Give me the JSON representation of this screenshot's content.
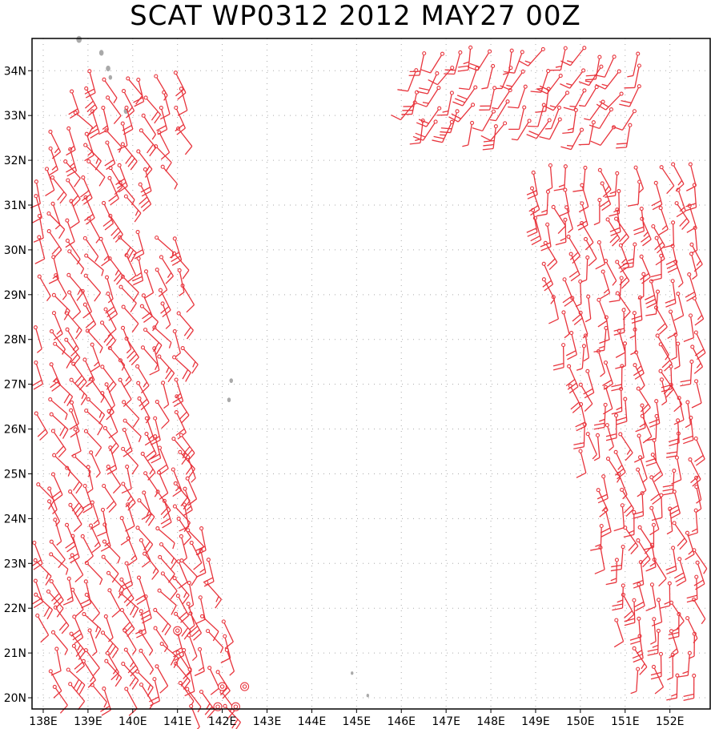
{
  "title": "SCAT WP0312 2012 MAY27 00Z",
  "colors": {
    "barb": "#e8353d",
    "land": "#a9a9a9",
    "grid": "#aaaaaa",
    "frame": "#000000"
  },
  "x_axis": {
    "ticks": [
      138,
      139,
      140,
      141,
      142,
      143,
      144,
      145,
      146,
      147,
      148,
      149,
      150,
      151,
      152
    ],
    "labels": [
      "138E",
      "139E",
      "140E",
      "141E",
      "142E",
      "143E",
      "144E",
      "145E",
      "146E",
      "147E",
      "148E",
      "149E",
      "150E",
      "151E",
      "152E"
    ],
    "range": [
      137.75,
      152.9
    ]
  },
  "y_axis": {
    "ticks": [
      20,
      21,
      22,
      23,
      24,
      25,
      26,
      27,
      28,
      29,
      30,
      31,
      32,
      33,
      34
    ],
    "labels": [
      "20N",
      "21N",
      "22N",
      "23N",
      "24N",
      "25N",
      "26N",
      "27N",
      "28N",
      "29N",
      "30N",
      "31N",
      "32N",
      "33N",
      "34N"
    ],
    "range": [
      19.75,
      34.72
    ]
  },
  "grid": true,
  "swaths": [
    {
      "lon_min": 137.8,
      "lon_max": 141.3,
      "lat_min": 20.3,
      "lat_max": 33.9,
      "dir": 150
    },
    {
      "lon_min": 140.8,
      "lon_max": 142.6,
      "lat_min": 19.8,
      "lat_max": 27.0,
      "dir": 150
    },
    {
      "lon_min": 148.5,
      "lon_max": 152.9,
      "lat_min": 20.6,
      "lat_max": 31.9,
      "dir": 165
    },
    {
      "lon_min": 146.4,
      "lon_max": 151.5,
      "lat_min": 32.8,
      "lat_max": 34.7,
      "dir": 205
    }
  ],
  "calm_points": [
    {
      "lon": 141.0,
      "lat": 21.5
    },
    {
      "lon": 142.0,
      "lat": 20.25
    },
    {
      "lon": 142.5,
      "lat": 20.25
    },
    {
      "lon": 141.9,
      "lat": 19.8
    },
    {
      "lon": 142.3,
      "lat": 19.8
    }
  ],
  "land": [
    {
      "lon": 138.8,
      "lat": 34.7,
      "r": 0.06
    },
    {
      "lon": 139.3,
      "lat": 34.4,
      "r": 0.05
    },
    {
      "lon": 139.45,
      "lat": 34.05,
      "r": 0.05
    },
    {
      "lon": 139.5,
      "lat": 33.85,
      "r": 0.04
    },
    {
      "lon": 139.85,
      "lat": 33.1,
      "r": 0.05
    },
    {
      "lon": 142.2,
      "lat": 27.08,
      "r": 0.04
    },
    {
      "lon": 142.15,
      "lat": 26.65,
      "r": 0.04
    },
    {
      "lon": 144.9,
      "lat": 20.55,
      "r": 0.03
    },
    {
      "lon": 145.25,
      "lat": 20.05,
      "r": 0.03
    }
  ]
}
